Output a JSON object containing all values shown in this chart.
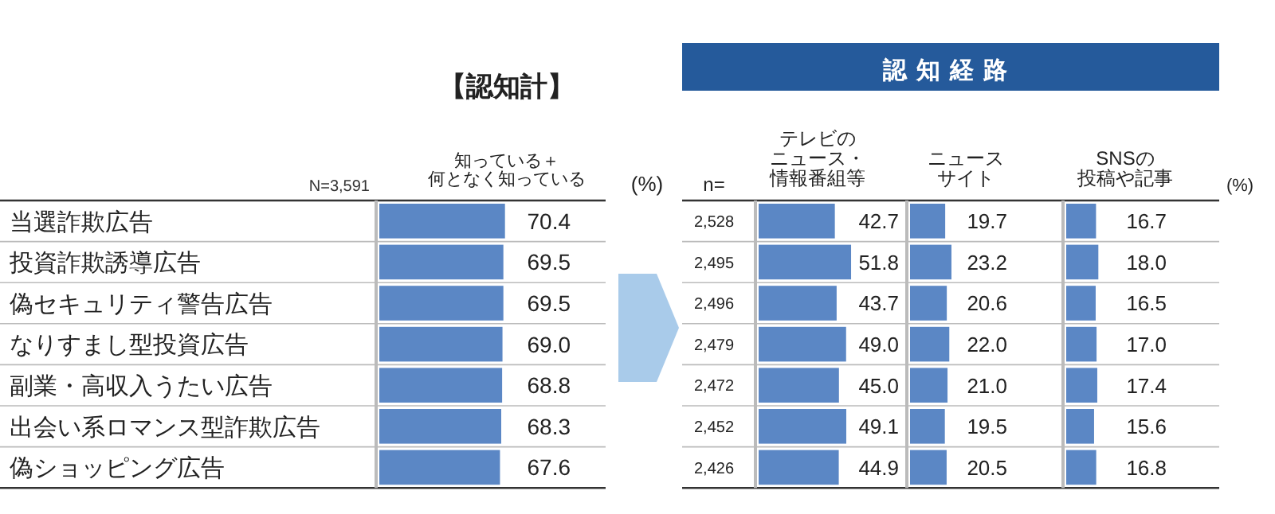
{
  "chart_data": [
    {
      "type": "bar",
      "orientation": "horizontal",
      "title": "【認知計】",
      "annotations": [
        "N=3,591",
        "(%)"
      ],
      "categories": [
        "当選詐欺広告",
        "投資詐欺誘導広告",
        "偽セキュリティ警告広告",
        "なりすまし型投資広告",
        "副業・高収入うたい広告",
        "出会い系ロマンス型詐欺広告",
        "偽ショッピング広告"
      ],
      "series": [
        {
          "name": "知っている＋何となく知っている",
          "color": "#5b87c5",
          "values": [
            70.4,
            69.5,
            69.5,
            69.0,
            68.8,
            68.3,
            67.6
          ],
          "value_labels": [
            "70.4",
            "69.5",
            "69.5",
            "69.0",
            "68.8",
            "68.3",
            "67.6"
          ]
        }
      ]
    },
    {
      "type": "bar",
      "orientation": "horizontal",
      "annotations": [
        "n="
      ],
      "categories": [
        "2,528",
        "2,495",
        "2,496",
        "2,479",
        "2,472",
        "2,452",
        "2,426"
      ],
      "series": [
        {
          "name": "テレビのニュース・情報番組等",
          "color": "#5b87c5",
          "values": [
            42.7,
            51.8,
            43.7,
            49.0,
            45.0,
            49.1,
            44.9
          ],
          "value_labels": [
            "42.7",
            "51.8",
            "43.7",
            "49.0",
            "45.0",
            "49.1",
            "44.9"
          ]
        }
      ]
    },
    {
      "type": "bar",
      "orientation": "horizontal",
      "title": "認知経路",
      "categories": [
        null,
        null,
        null,
        null,
        null,
        null,
        null
      ],
      "series": [
        {
          "name": "ニュースサイト",
          "color": "#5b87c5",
          "values": [
            19.7,
            23.2,
            20.6,
            22.0,
            21.0,
            19.5,
            20.5
          ],
          "value_labels": [
            "19.7",
            "23.2",
            "20.6",
            "22.0",
            "21.0",
            "19.5",
            "20.5"
          ]
        }
      ]
    },
    {
      "type": "bar",
      "orientation": "horizontal",
      "annotations": [
        "(%)"
      ],
      "categories": [
        null,
        null,
        null,
        null,
        null,
        null,
        null
      ],
      "series": [
        {
          "name": "SNSの投稿や記事",
          "color": "#5b87c5",
          "values": [
            16.7,
            18.0,
            16.5,
            17.0,
            17.4,
            15.6,
            16.8
          ],
          "value_labels": [
            "16.7",
            "18.0",
            "16.5",
            "17.0",
            "17.4",
            "15.6",
            "16.8"
          ]
        }
      ]
    }
  ]
}
